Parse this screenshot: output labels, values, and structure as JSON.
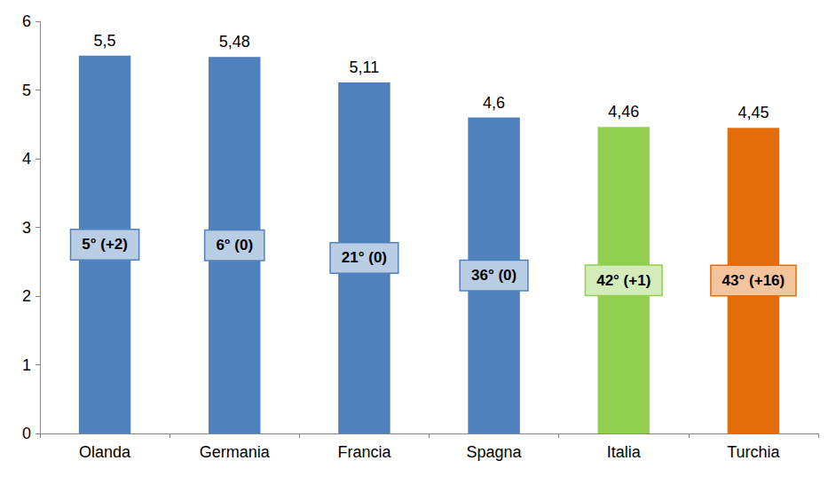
{
  "chart_data": {
    "type": "bar",
    "categories": [
      "Olanda",
      "Germania",
      "Francia",
      "Spagna",
      "Italia",
      "Turchia"
    ],
    "values": [
      5.5,
      5.48,
      5.11,
      4.6,
      4.46,
      4.45
    ],
    "value_labels": [
      "5,5",
      "5,48",
      "5,11",
      "4,6",
      "4,46",
      "4,45"
    ],
    "colors": [
      "#4f81bd",
      "#4f81bd",
      "#4f81bd",
      "#4f81bd",
      "#92d050",
      "#e46c0a"
    ],
    "annotations": [
      "5° (+2)",
      "6° (0)",
      "21° (0)",
      "36° (0)",
      "42° (+1)",
      "43° (+16)"
    ],
    "ylim": [
      0,
      6
    ],
    "yticks": [
      0,
      1,
      2,
      3,
      4,
      5,
      6
    ],
    "grid": false,
    "data_labels": true
  }
}
